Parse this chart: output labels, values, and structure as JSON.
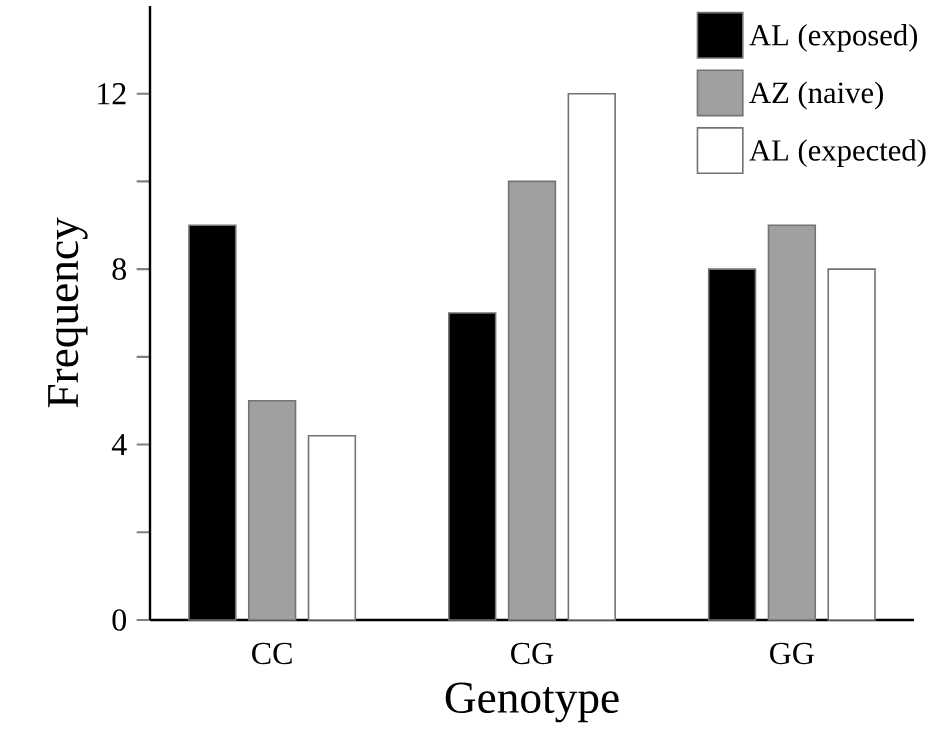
{
  "chart_data": {
    "type": "bar",
    "xlabel": "Genotype",
    "ylabel": "Frequency",
    "categories": [
      "CC",
      "CG",
      "GG"
    ],
    "series": [
      {
        "name": "AL (exposed)",
        "color": "#000000",
        "values": [
          9,
          7,
          8
        ]
      },
      {
        "name": "AZ (naive)",
        "color": "#a0a0a0",
        "values": [
          5,
          10,
          9
        ]
      },
      {
        "name": "AL (expected)",
        "color": "#ffffff",
        "values": [
          4.2,
          12,
          8
        ]
      }
    ],
    "ylim": [
      0,
      14
    ],
    "yticks": [
      0,
      {
        "value": 2,
        "label": null
      },
      4,
      {
        "value": 6,
        "label": null
      },
      8,
      {
        "value": 10,
        "label": null
      },
      12
    ],
    "grid": false,
    "legend": "top right"
  }
}
